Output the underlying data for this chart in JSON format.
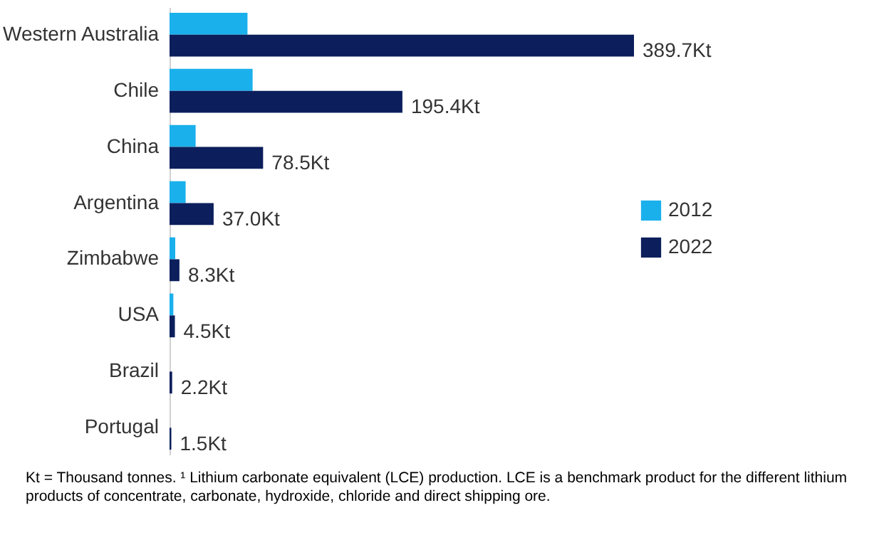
{
  "chart_data": {
    "type": "bar",
    "orientation": "horizontal",
    "categories": [
      "Western Australia",
      "Chile",
      "China",
      "Argentina",
      "Zimbabwe",
      "USA",
      "Brazil",
      "Portugal"
    ],
    "series": [
      {
        "name": "2012",
        "color": "#1ab0ec",
        "values": [
          65.4,
          69.7,
          21.9,
          13.5,
          4.8,
          3.2,
          0,
          0
        ]
      },
      {
        "name": "2022",
        "color": "#0c1f5c",
        "values": [
          389.7,
          195.4,
          78.5,
          37.0,
          8.3,
          4.5,
          2.2,
          1.5
        ],
        "value_labels": [
          "389.7Kt",
          "195.4Kt",
          "78.5Kt",
          "37.0Kt",
          "8.3Kt",
          "4.5Kt",
          "2.2Kt",
          "1.5Kt"
        ]
      }
    ],
    "legend": "right",
    "grid": false,
    "annotations": [
      "Kt = Thousand tonnes. ¹ Lithium carbonate equivalent (LCE) production. LCE is a benchmark product for the different lithium products of concentrate, carbonate, hydroxide, chloride and direct shipping ore."
    ]
  }
}
